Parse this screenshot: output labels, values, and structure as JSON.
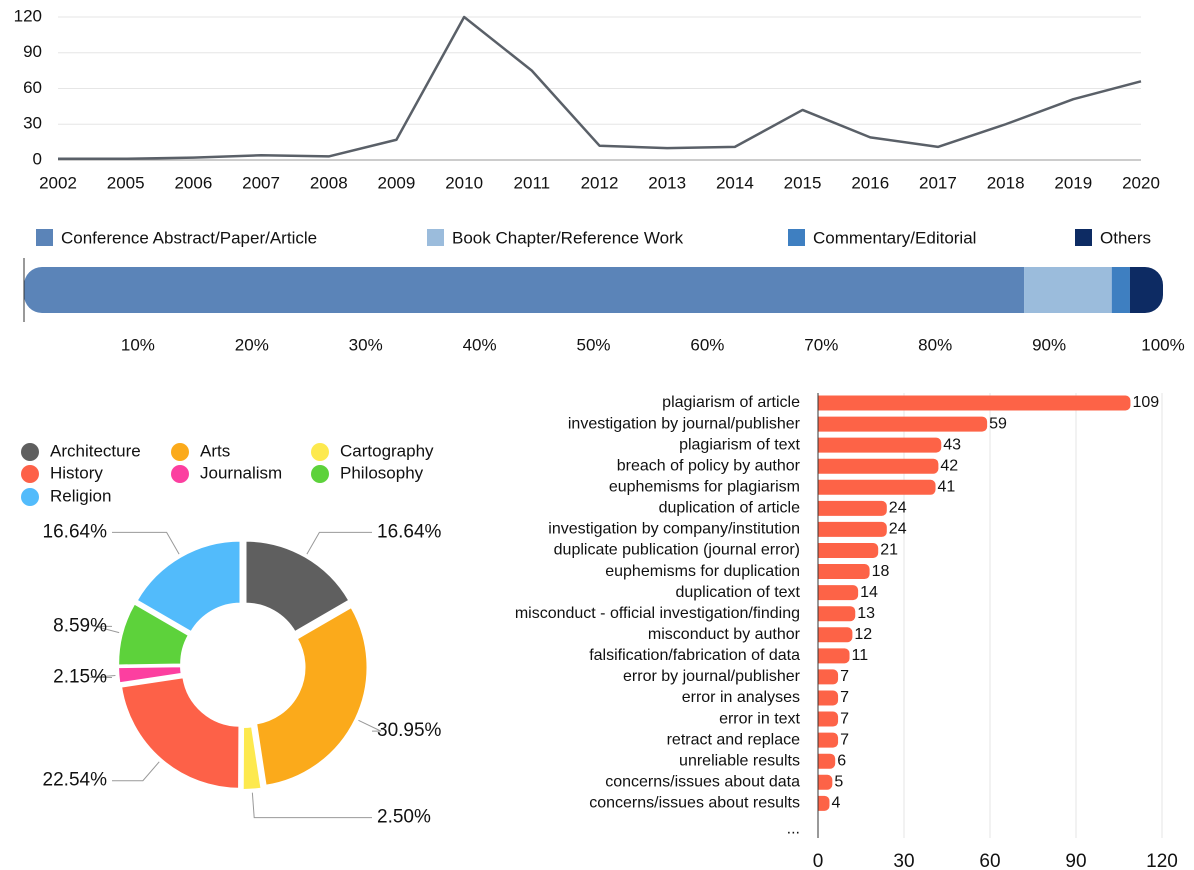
{
  "chart_data": [
    {
      "type": "line",
      "categories": [
        "2002",
        "2005",
        "2006",
        "2007",
        "2008",
        "2009",
        "2010",
        "2011",
        "2012",
        "2013",
        "2014",
        "2015",
        "2016",
        "2017",
        "2018",
        "2019",
        "2020"
      ],
      "values": [
        1,
        1,
        2,
        4,
        3,
        17,
        120,
        75,
        12,
        10,
        11,
        42,
        19,
        11,
        30,
        51,
        66
      ],
      "color": "#5a6068",
      "ylim": [
        0,
        120
      ],
      "yticks": [
        0,
        30,
        60,
        90,
        120
      ],
      "grid": true
    },
    {
      "type": "stacked-bar",
      "series": [
        {
          "name": "Conference Abstract/Paper/Article",
          "color": "#5b84b8",
          "values": [
            87.8
          ]
        },
        {
          "name": "Book Chapter/Reference Work",
          "color": "#9bbcdc",
          "values": [
            7.7
          ]
        },
        {
          "name": "Commentary/Editorial",
          "color": "#3e7fc1",
          "values": [
            1.6
          ]
        },
        {
          "name": "Others",
          "color": "#0d2b63",
          "values": [
            2.9
          ]
        }
      ],
      "xlim": [
        0,
        100
      ],
      "xticks": [
        {
          "value": 10,
          "label": "10%"
        },
        {
          "value": 20,
          "label": "20%"
        },
        {
          "value": 30,
          "label": "30%"
        },
        {
          "value": 40,
          "label": "40%"
        },
        {
          "value": 50,
          "label": "50%"
        },
        {
          "value": 60,
          "label": "60%"
        },
        {
          "value": 70,
          "label": "70%"
        },
        {
          "value": 80,
          "label": "80%"
        },
        {
          "value": 90,
          "label": "90%"
        },
        {
          "value": 100,
          "label": "100%"
        }
      ],
      "legend": "top"
    },
    {
      "type": "donut",
      "categories": [
        "Architecture",
        "Arts",
        "Cartography",
        "History",
        "Journalism",
        "Philosophy",
        "Religion"
      ],
      "values": [
        16.64,
        30.95,
        2.5,
        22.54,
        2.15,
        8.59,
        16.64
      ],
      "value_labels": [
        "16.64%",
        "30.95%",
        "2.50%",
        "22.54%",
        "2.15%",
        "8.59%",
        "16.64%"
      ],
      "colors": [
        "#5f5f5f",
        "#fbaa1b",
        "#fde94e",
        "#fd6148",
        "#fc3fa0",
        "#5dd23b",
        "#52bbfb"
      ],
      "legend": "top-left"
    },
    {
      "type": "hbar",
      "categories": [
        "plagiarism of article",
        "investigation by journal/publisher",
        "plagiarism of text",
        "breach of policy by author",
        "euphemisms for plagiarism",
        "duplication of article",
        "investigation by company/institution",
        "duplicate publication (journal error)",
        "euphemisms for duplication",
        "duplication of text",
        "misconduct - official investigation/finding",
        "misconduct by author",
        "falsification/fabrication of data",
        "error by journal/publisher",
        "error in analyses",
        "error in text",
        "retract and replace",
        "unreliable results",
        "concerns/issues about data",
        "concerns/issues about results",
        "..."
      ],
      "values": [
        109,
        59,
        43,
        42,
        41,
        24,
        24,
        21,
        18,
        14,
        13,
        12,
        11,
        7,
        7,
        7,
        7,
        6,
        5,
        4,
        null
      ],
      "color": "#fd6347",
      "xlim": [
        0,
        120
      ],
      "xticks": [
        0,
        30,
        60,
        90,
        120
      ],
      "grid": true
    }
  ]
}
